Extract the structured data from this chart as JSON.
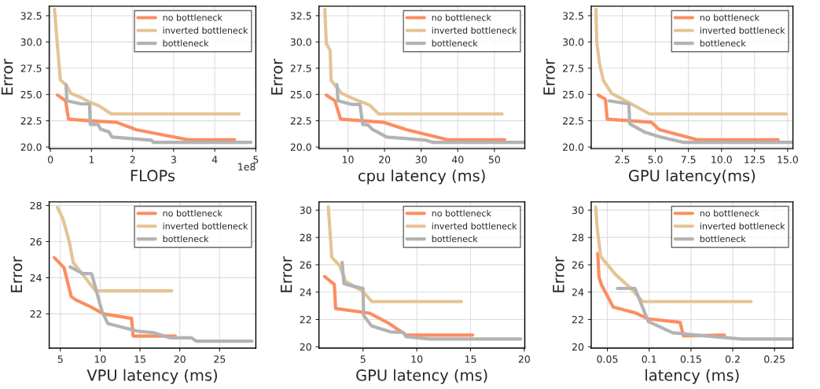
{
  "chart_data": [
    {
      "type": "line",
      "xlabel": "FLOPs",
      "ylabel": "Error",
      "annotations": [
        "1e8"
      ],
      "xlim": [
        -0.03,
        5.0
      ],
      "xticks": [
        0,
        1,
        2,
        3,
        4,
        5
      ],
      "ylim": [
        19.85,
        33.4
      ],
      "yticks": [
        {
          "value": 20,
          "label": "20.0"
        },
        {
          "value": 22.5,
          "label": "22.5"
        },
        {
          "value": 25,
          "label": "25.0"
        },
        {
          "value": 27.5,
          "label": "27.5"
        },
        {
          "value": 30,
          "label": "30.0"
        },
        {
          "value": 32.5,
          "label": "32.5"
        }
      ],
      "grid": true,
      "legend": "top right",
      "series": [
        {
          "name": "no bottleneck",
          "color": "#fc8d62",
          "x": [
            0.17,
            0.37,
            0.44,
            0.94,
            1.61,
            1.92,
            2.08,
            3.35,
            4.48
          ],
          "values": [
            24.95,
            24.4,
            22.65,
            22.5,
            22.35,
            21.9,
            21.65,
            20.7,
            20.7
          ]
        },
        {
          "name": "inverted bottleneck",
          "color": "#e5c494",
          "x": [
            0.1,
            0.17,
            0.24,
            0.38,
            0.5,
            0.75,
            0.97,
            1.19,
            1.48,
            4.59
          ],
          "values": [
            33.1,
            29.7,
            26.4,
            25.9,
            25.1,
            24.7,
            24.25,
            23.9,
            23.15,
            23.15
          ]
        },
        {
          "name": "bottleneck",
          "color": "#b3b3b3",
          "x": [
            0.38,
            0.4,
            0.75,
            0.95,
            0.97,
            1.16,
            1.22,
            1.42,
            1.5,
            2.46,
            2.5,
            4.88
          ],
          "values": [
            25.95,
            24.4,
            24.1,
            24.1,
            22.15,
            22.15,
            21.7,
            21.45,
            20.95,
            20.65,
            20.45,
            20.45
          ]
        }
      ]
    },
    {
      "type": "line",
      "xlabel": "cpu latency (ms)",
      "ylabel": "Error",
      "xlim": [
        2.1,
        58.3
      ],
      "xticks": [
        10,
        20,
        30,
        40,
        50
      ],
      "ylim": [
        19.85,
        33.4
      ],
      "yticks": [
        {
          "value": 20,
          "label": "20.0"
        },
        {
          "value": 22.5,
          "label": "22.5"
        },
        {
          "value": 25,
          "label": "25.0"
        },
        {
          "value": 27.5,
          "label": "27.5"
        },
        {
          "value": 30,
          "label": "30.0"
        },
        {
          "value": 32.5,
          "label": "32.5"
        }
      ],
      "grid": true,
      "legend": "top right",
      "series": [
        {
          "name": "no bottleneck",
          "color": "#fc8d62",
          "x": [
            4.1,
            6.45,
            8.0,
            19.85,
            26.0,
            37.2,
            52.8
          ],
          "values": [
            24.95,
            24.4,
            22.65,
            22.35,
            21.65,
            20.7,
            20.7
          ]
        },
        {
          "name": "inverted bottleneck",
          "color": "#e5c494",
          "x": [
            3.7,
            4.1,
            5.15,
            5.4,
            8.3,
            11.5,
            15.9,
            18.4,
            52.1
          ],
          "values": [
            33.1,
            29.85,
            29.2,
            26.35,
            25.1,
            24.6,
            24.0,
            23.15,
            23.15
          ]
        },
        {
          "name": "bottleneck",
          "color": "#b3b3b3",
          "x": [
            7.0,
            7.3,
            11.15,
            13.3,
            14.05,
            15.5,
            16.6,
            20.6,
            31.3,
            33.1,
            58.1
          ],
          "values": [
            25.95,
            24.4,
            24.05,
            24.05,
            22.15,
            22.1,
            21.7,
            20.95,
            20.65,
            20.45,
            20.45
          ]
        }
      ]
    },
    {
      "type": "line",
      "xlabel": "GPU latency(ms)",
      "ylabel": "Error",
      "xlim": [
        0.15,
        15.4
      ],
      "xticks": [
        {
          "value": 2.5,
          "label": "2.5"
        },
        {
          "value": 5,
          "label": "5.0"
        },
        {
          "value": 7.5,
          "label": "7.5"
        },
        {
          "value": 10,
          "label": "10.0"
        },
        {
          "value": 12.5,
          "label": "12.5"
        },
        {
          "value": 15,
          "label": "15.0"
        }
      ],
      "ylim": [
        19.85,
        33.4
      ],
      "yticks": [
        {
          "value": 20,
          "label": "20.0"
        },
        {
          "value": 22.5,
          "label": "22.5"
        },
        {
          "value": 25,
          "label": "25.0"
        },
        {
          "value": 27.5,
          "label": "27.5"
        },
        {
          "value": 30,
          "label": "30.0"
        },
        {
          "value": 32.5,
          "label": "32.5"
        }
      ],
      "grid": true,
      "legend": "top right",
      "series": [
        {
          "name": "no bottleneck",
          "color": "#fc8d62",
          "x": [
            0.67,
            1.22,
            1.36,
            4.71,
            5.3,
            8.16,
            14.28
          ],
          "values": [
            24.95,
            24.55,
            22.65,
            22.35,
            21.65,
            20.7,
            20.7
          ]
        },
        {
          "name": "inverted bottleneck",
          "color": "#e5c494",
          "x": [
            0.51,
            0.57,
            0.77,
            1.06,
            1.69,
            3.03,
            4.57,
            14.9
          ],
          "values": [
            33.1,
            29.95,
            28.0,
            26.35,
            25.1,
            24.2,
            23.15,
            23.15
          ]
        },
        {
          "name": "bottleneck",
          "color": "#b3b3b3",
          "x": [
            1.5,
            2.99,
            3.07,
            4.22,
            5.4,
            7.08,
            15.3
          ],
          "values": [
            24.4,
            24.1,
            22.2,
            21.4,
            20.95,
            20.45,
            20.45
          ]
        }
      ]
    },
    {
      "type": "line",
      "xlabel": "VPU latency (ms)",
      "ylabel": "Error",
      "xlim": [
        3.6,
        29.55
      ],
      "xticks": [
        5,
        10,
        15,
        20,
        25
      ],
      "ylim": [
        20.1,
        28.2
      ],
      "yticks": [
        22,
        24,
        26,
        28
      ],
      "grid": true,
      "legend": "top right",
      "series": [
        {
          "name": "no bottleneck",
          "color": "#fc8d62",
          "x": [
            4.24,
            5.47,
            6.36,
            6.95,
            8.76,
            10.42,
            13.94,
            14.14,
            19.43
          ],
          "values": [
            25.11,
            24.55,
            22.96,
            22.77,
            22.4,
            22.0,
            21.75,
            20.77,
            20.77
          ]
        },
        {
          "name": "inverted bottleneck",
          "color": "#e5c494",
          "x": [
            4.63,
            5.3,
            6.12,
            6.61,
            9.42,
            18.99
          ],
          "values": [
            27.9,
            27.3,
            26.0,
            24.85,
            23.27,
            23.27
          ]
        },
        {
          "name": "bottleneck",
          "color": "#b3b3b3",
          "x": [
            6.22,
            7.77,
            8.93,
            10.25,
            10.97,
            14.87,
            16.68,
            18.83,
            21.47,
            22.06,
            29.06
          ],
          "values": [
            24.6,
            24.24,
            24.22,
            22.11,
            21.46,
            21.03,
            20.96,
            20.67,
            20.67,
            20.49,
            20.49
          ]
        }
      ]
    },
    {
      "type": "line",
      "xlabel": "GPU latency (ms)",
      "ylabel": "Error",
      "xlim": [
        0.9,
        20.05
      ],
      "xticks": [
        5,
        10,
        15,
        20
      ],
      "ylim": [
        19.9,
        30.6
      ],
      "yticks": [
        20,
        22,
        24,
        26,
        28,
        30
      ],
      "grid": true,
      "legend": "top right",
      "series": [
        {
          "name": "no bottleneck",
          "color": "#fc8d62",
          "x": [
            1.43,
            2.33,
            2.45,
            5.6,
            7.43,
            9.0,
            15.2
          ],
          "values": [
            25.14,
            24.57,
            22.8,
            22.46,
            21.7,
            20.86,
            20.86
          ]
        },
        {
          "name": "inverted bottleneck",
          "color": "#e5c494",
          "x": [
            1.77,
            2.09,
            2.82,
            3.37,
            5.0,
            5.8,
            14.15
          ],
          "values": [
            30.23,
            26.55,
            25.94,
            24.8,
            24.04,
            23.31,
            23.31
          ]
        },
        {
          "name": "bottleneck",
          "color": "#b3b3b3",
          "x": [
            3.06,
            3.22,
            4.15,
            5.0,
            5.05,
            5.8,
            7.55,
            8.76,
            9.0,
            11.19,
            19.68
          ],
          "values": [
            26.17,
            24.61,
            24.42,
            24.27,
            22.29,
            21.53,
            21.09,
            21.05,
            20.74,
            20.57,
            20.57
          ]
        }
      ]
    },
    {
      "type": "line",
      "xlabel": "latency (ms)",
      "ylabel": "Error",
      "xlim": [
        0.0307,
        0.272
      ],
      "xticks": [
        0.05,
        0.1,
        0.15,
        0.2,
        0.25
      ],
      "ylim": [
        19.9,
        30.6
      ],
      "yticks": [
        20,
        22,
        24,
        26,
        28,
        30
      ],
      "grid": true,
      "legend": "top right",
      "series": [
        {
          "name": "no bottleneck",
          "color": "#fc8d62",
          "x": [
            0.0385,
            0.04,
            0.043,
            0.057,
            0.084,
            0.099,
            0.137,
            0.141,
            0.19
          ],
          "values": [
            26.82,
            25.1,
            24.53,
            22.9,
            22.47,
            22.04,
            21.79,
            20.8,
            20.86
          ]
        },
        {
          "name": "inverted bottleneck",
          "color": "#e5c494",
          "x": [
            0.036,
            0.038,
            0.042,
            0.06,
            0.078,
            0.092,
            0.222
          ],
          "values": [
            30.23,
            28.61,
            26.61,
            25.27,
            24.29,
            23.31,
            23.31
          ]
        },
        {
          "name": "bottleneck",
          "color": "#b3b3b3",
          "x": [
            0.062,
            0.083,
            0.099,
            0.128,
            0.148,
            0.21,
            0.271
          ],
          "values": [
            24.27,
            24.27,
            21.85,
            21.03,
            20.9,
            20.57,
            20.57
          ]
        }
      ]
    }
  ]
}
